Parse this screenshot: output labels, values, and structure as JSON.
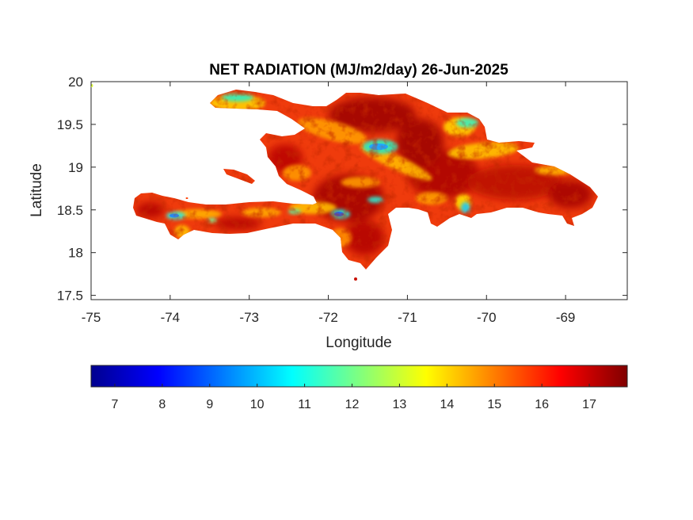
{
  "chart_data": {
    "type": "heatmap",
    "title": "NET RADIATION (MJ/m2/day) 26-Jun-2025",
    "xlabel": "Longitude",
    "ylabel": "Latitude",
    "xlim": [
      -75,
      -68.22
    ],
    "ylim": [
      17.45,
      20
    ],
    "x_ticks": [
      -75,
      -74,
      -73,
      -72,
      -71,
      -70,
      -69
    ],
    "y_ticks": [
      17.5,
      18,
      18.5,
      19,
      19.5,
      20
    ],
    "x_tick_labels": [
      "-75",
      "-74",
      "-73",
      "-72",
      "-71",
      "-70",
      "-69"
    ],
    "y_tick_labels": [
      "17.5",
      "18",
      "18.5",
      "19",
      "19.5",
      "20"
    ],
    "colormap": "jet",
    "colorbar": {
      "orientation": "horizontal",
      "range": [
        6.5,
        17.8
      ],
      "ticks": [
        7,
        8,
        9,
        10,
        11,
        12,
        13,
        14,
        15,
        16,
        17
      ],
      "tick_labels": [
        "7",
        "8",
        "9",
        "10",
        "11",
        "12",
        "13",
        "14",
        "15",
        "16",
        "17"
      ]
    },
    "region": "Hispaniola (Haiti and Dominican Republic)",
    "typical_value_range": [
      9,
      17.5
    ],
    "low_value_areas": [
      {
        "lon": -71.45,
        "lat": 19.22,
        "value": 10
      },
      {
        "lon": -71.9,
        "lat": 18.45,
        "value": 9.5
      },
      {
        "lon": -73.8,
        "lat": 18.38,
        "value": 10.5
      },
      {
        "lon": -73.25,
        "lat": 19.85,
        "value": 11.5
      },
      {
        "lon": -70.3,
        "lat": 19.55,
        "value": 11
      },
      {
        "lon": -71.45,
        "lat": 18.57,
        "value": 10.5
      }
    ]
  },
  "colors": {
    "background": "#ffffff",
    "axes": "#262626",
    "land_base": "#ee3a0a"
  }
}
